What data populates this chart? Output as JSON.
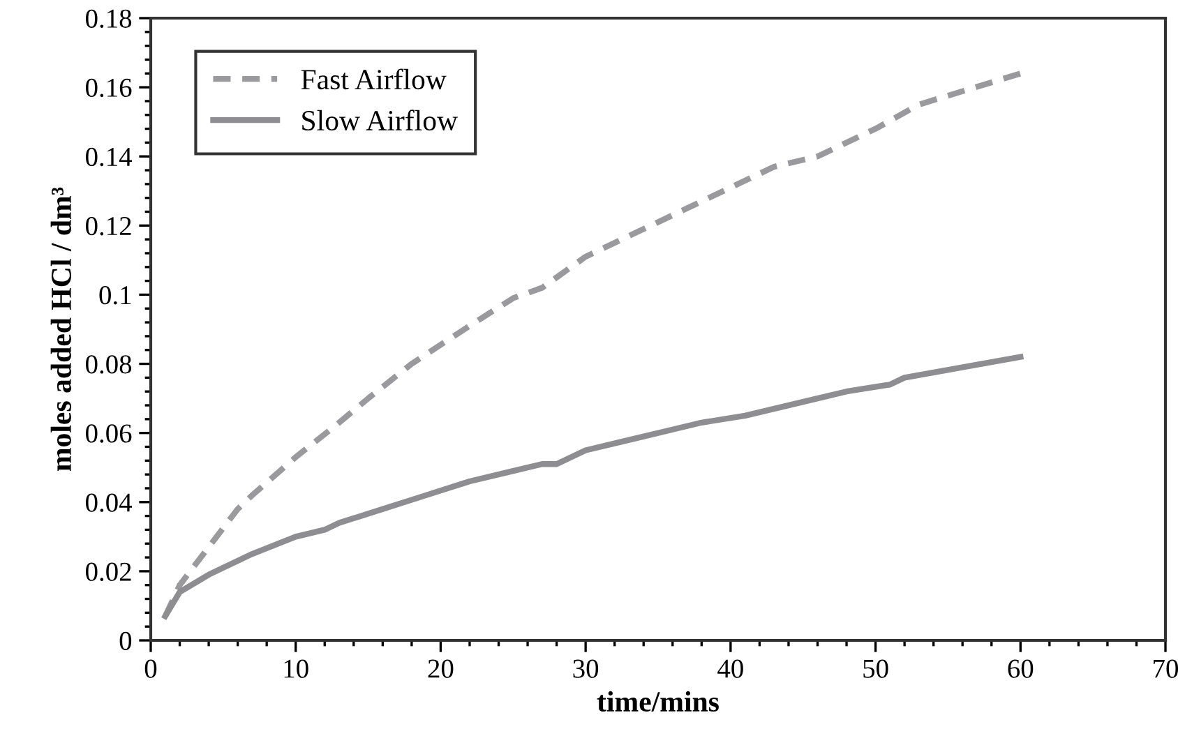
{
  "chart_data": {
    "type": "line",
    "xlabel": "time/mins",
    "ylabel": "moles added HCl / dm³",
    "xlim": [
      0,
      70
    ],
    "xticks": [
      0,
      10,
      20,
      30,
      40,
      50,
      60,
      70
    ],
    "ylim": [
      0,
      0.18
    ],
    "yticks": [
      0,
      0.02,
      0.04,
      0.06,
      0.08,
      0.1,
      0.12,
      0.14,
      0.16,
      0.18
    ],
    "grid": false,
    "legend": "top left",
    "series": [
      {
        "name": "Fast Airflow",
        "color": "#9a9a9e",
        "line_style": "dashed",
        "x": [
          1,
          2,
          6,
          7,
          10,
          13,
          15,
          18,
          22,
          25,
          27,
          30,
          33,
          36,
          37,
          40,
          43,
          46,
          50,
          53,
          60
        ],
        "values": [
          0.007,
          0.016,
          0.038,
          0.042,
          0.053,
          0.063,
          0.07,
          0.08,
          0.091,
          0.099,
          0.102,
          0.111,
          0.117,
          0.123,
          0.125,
          0.131,
          0.137,
          0.14,
          0.148,
          0.155,
          0.164
        ]
      },
      {
        "name": "Slow Airflow",
        "color": "#8e8e92",
        "line_style": "solid",
        "x": [
          1,
          2,
          4,
          7,
          10,
          12,
          13,
          16,
          19,
          22,
          25,
          27,
          28,
          30,
          33,
          36,
          38,
          41,
          46,
          48,
          51,
          52,
          60
        ],
        "values": [
          0.007,
          0.014,
          0.019,
          0.025,
          0.03,
          0.032,
          0.034,
          0.038,
          0.042,
          0.046,
          0.049,
          0.051,
          0.051,
          0.055,
          0.058,
          0.061,
          0.063,
          0.065,
          0.07,
          0.072,
          0.074,
          0.076,
          0.082
        ]
      }
    ]
  }
}
